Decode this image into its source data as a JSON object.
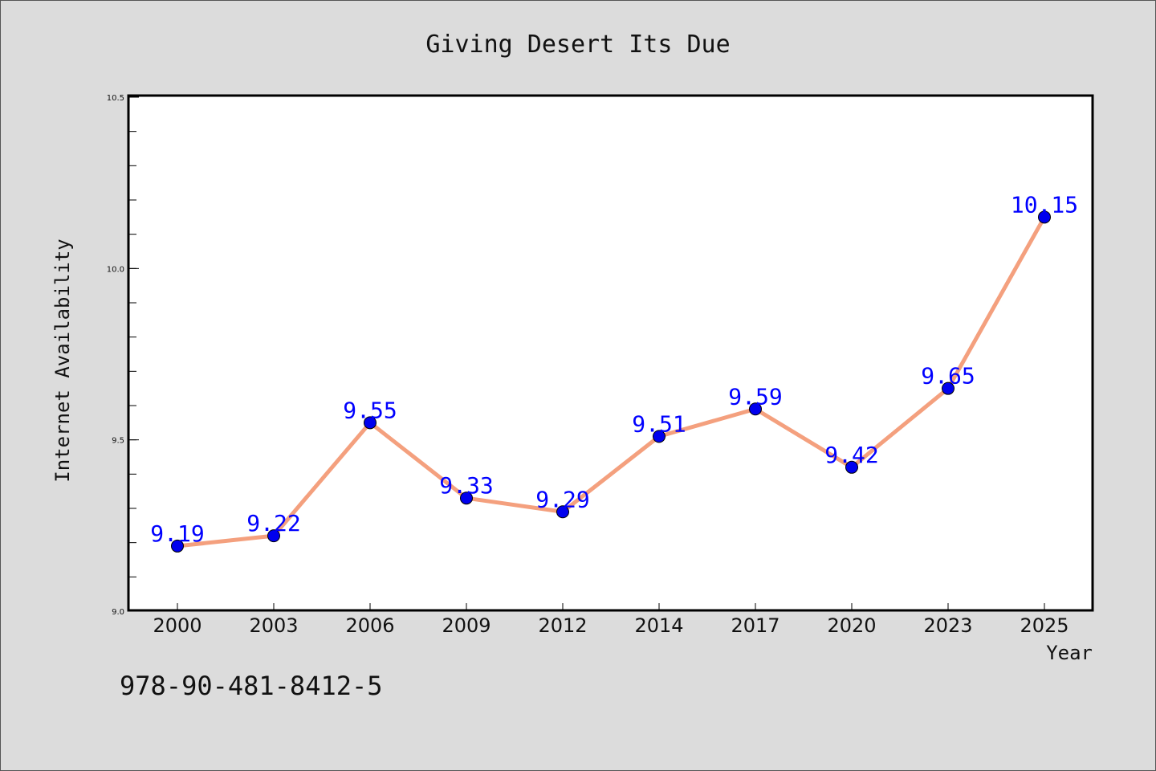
{
  "footer": {
    "isbn": "978-90-481-8412-5"
  },
  "colors": {
    "background": "#dcdcdc",
    "plot_background": "#ffffff",
    "line": "#f4a07e",
    "marker": "#0000ee",
    "data_label": "#0000ff",
    "text": "#111111"
  },
  "chart_data": {
    "type": "line",
    "title": "Giving Desert Its Due",
    "xlabel": "Year",
    "ylabel": "Internet Availability",
    "categories": [
      "2000",
      "2003",
      "2006",
      "2009",
      "2012",
      "2014",
      "2017",
      "2020",
      "2023",
      "2025"
    ],
    "series": [
      {
        "values": [
          9.19,
          9.22,
          9.55,
          9.33,
          9.29,
          9.51,
          9.59,
          9.42,
          9.65,
          10.15
        ]
      }
    ],
    "data_labels": [
      "9.19",
      "9.22",
      "9.55",
      "9.33",
      "9.29",
      "9.51",
      "9.59",
      "9.42",
      "9.65",
      "10.15"
    ],
    "ylim": [
      9.0,
      10.5
    ],
    "y_major_ticks": [
      9.0,
      9.5,
      10.0,
      10.5
    ],
    "y_tick_labels": [
      "9.0",
      "9.5",
      "10.0",
      "10.5"
    ],
    "y_minor_step": 0.1,
    "grid": false,
    "legend": "none"
  }
}
